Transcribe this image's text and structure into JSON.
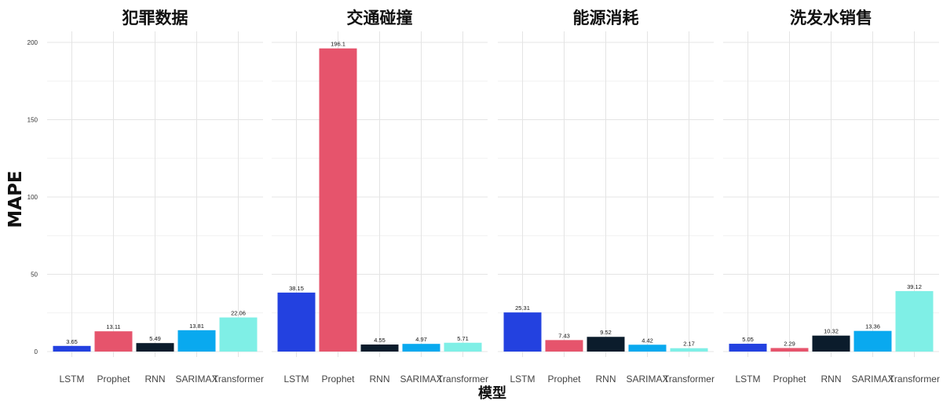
{
  "chart_data": {
    "type": "bar",
    "ylabel": "MAPE",
    "xlabel": "模型",
    "ylim": [
      0,
      205
    ],
    "yticks": [
      0,
      50,
      100,
      150,
      200
    ],
    "grid": true,
    "categories": [
      "LSTM",
      "Prophet",
      "RNN",
      "SARIMAX",
      "Transformer"
    ],
    "colors": [
      "#2341e0",
      "#e6546c",
      "#0b1c2c",
      "#09a9ef",
      "#7fefe6"
    ],
    "panels": [
      {
        "title": "犯罪数据",
        "values": [
          3.65,
          13.11,
          5.49,
          13.81,
          22.06
        ],
        "labels": [
          "3.65",
          "13.11",
          "5.49",
          "13.81",
          "22.06"
        ]
      },
      {
        "title": "交通碰撞",
        "values": [
          38.15,
          196.1,
          4.55,
          4.97,
          5.71
        ],
        "labels": [
          "38.15",
          "196.1",
          "4.55",
          "4.97",
          "5.71"
        ]
      },
      {
        "title": "能源消耗",
        "values": [
          25.31,
          7.43,
          9.52,
          4.42,
          2.17
        ],
        "labels": [
          "25.31",
          "7.43",
          "9.52",
          "4.42",
          "2.17"
        ]
      },
      {
        "title": "洗发水销售",
        "values": [
          5.05,
          2.29,
          10.32,
          13.36,
          39.12
        ],
        "labels": [
          "5.05",
          "2.29",
          "10.32",
          "13.36",
          "39.12"
        ]
      }
    ]
  }
}
